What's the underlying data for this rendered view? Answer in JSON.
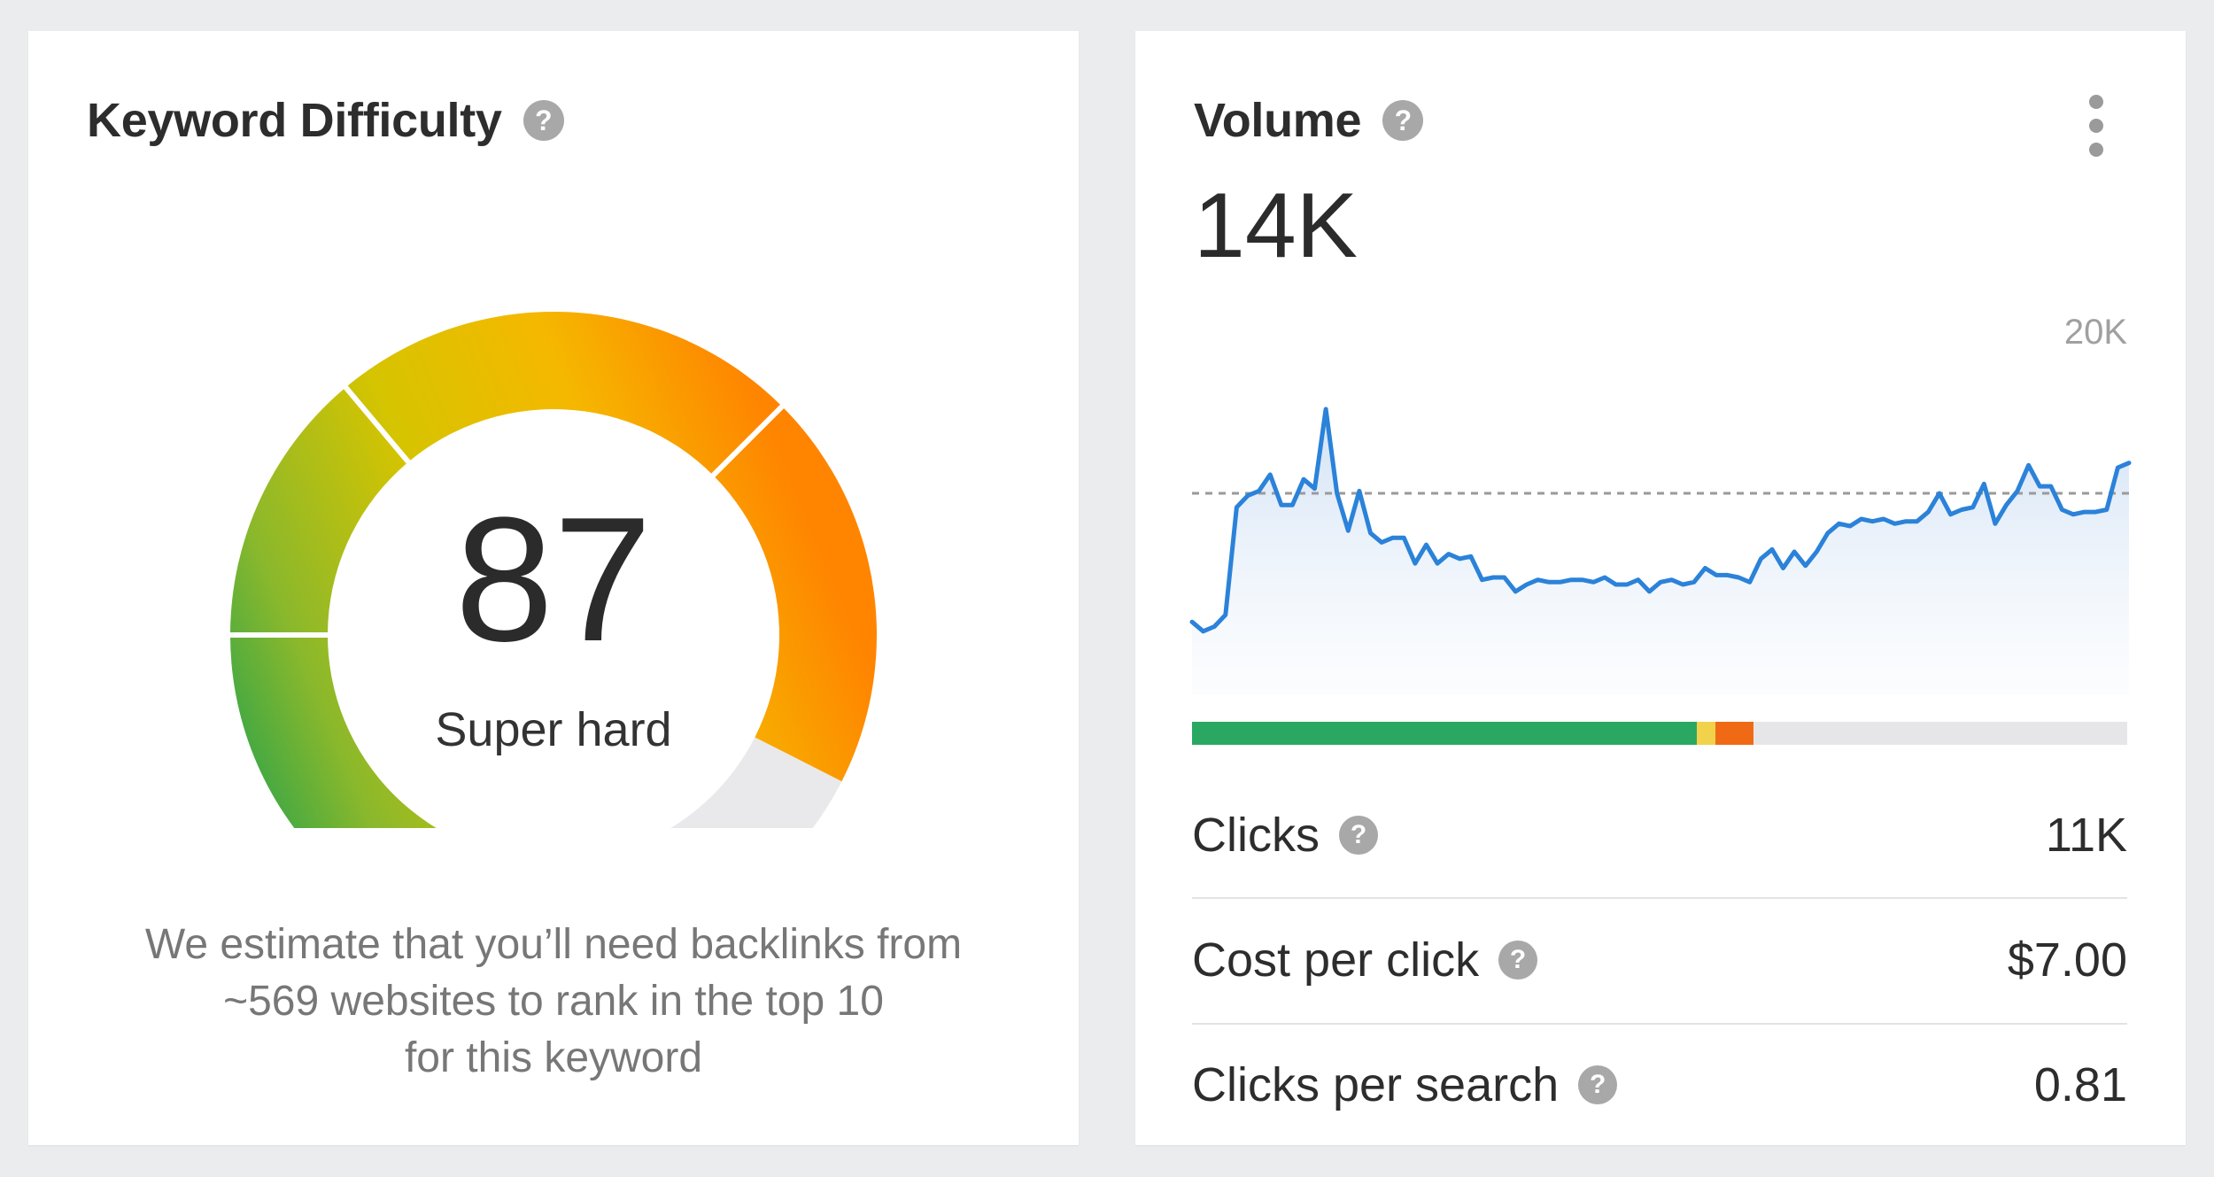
{
  "keyword_difficulty": {
    "title": "Keyword Difficulty",
    "help_icon": "question-circle-icon",
    "score": "87",
    "rating": "Super hard",
    "score_fraction": 0.87,
    "note_lines": [
      "We estimate that you’ll need backlinks from",
      "~569 websites to rank in the top 10",
      "for this keyword"
    ],
    "gauge_colors": [
      "#009a57",
      "#8ab82c",
      "#d6c400",
      "#f5b800",
      "#ff8500",
      "#e9e9eb"
    ]
  },
  "volume": {
    "title": "Volume",
    "help_icon": "question-circle-icon",
    "menu_icon": "more-vertical-icon",
    "value": "14K",
    "axis_max_label": "20K",
    "line_color": "#2b82d9",
    "click_distribution": {
      "organic_fraction": 0.54,
      "paid_fraction": 0.02,
      "other_fraction": 0.04,
      "colors": [
        "#2aa862",
        "#f3d24b",
        "#f06a16",
        "#e6e6e8"
      ]
    },
    "metrics": [
      {
        "label": "Clicks",
        "value": "11K"
      },
      {
        "label": "Cost per click",
        "value": "$7.00"
      },
      {
        "label": "Clicks per search",
        "value": "0.81"
      }
    ]
  },
  "chart_data": {
    "type": "area",
    "title": "",
    "xlabel": "",
    "ylabel": "",
    "ylim": [
      0,
      20000
    ],
    "reference_line": 14000,
    "series": [
      {
        "values": [
          8500,
          8100,
          8300,
          8800,
          13400,
          13900,
          14100,
          14800,
          13500,
          13500,
          14600,
          14200,
          17600,
          14000,
          12400,
          14100,
          12300,
          11900,
          12100,
          12100,
          11000,
          11800,
          11000,
          11400,
          11200,
          11300,
          10300,
          10400,
          10400,
          9800,
          10100,
          10300,
          10200,
          10200,
          10300,
          10300,
          10200,
          10400,
          10100,
          10100,
          10300,
          9800,
          10200,
          10300,
          10100,
          10200,
          10800,
          10500,
          10500,
          10400,
          10200,
          11200,
          11600,
          10800,
          11500,
          10900,
          11500,
          12300,
          12700,
          12600,
          12900,
          12800,
          12900,
          12700,
          12800,
          12800,
          13200,
          14000,
          13100,
          13300,
          13400,
          14400,
          12700,
          13500,
          14100,
          15200,
          14300,
          14300,
          13300,
          13100,
          13200,
          13200,
          13300,
          15100,
          15300
        ]
      }
    ]
  }
}
